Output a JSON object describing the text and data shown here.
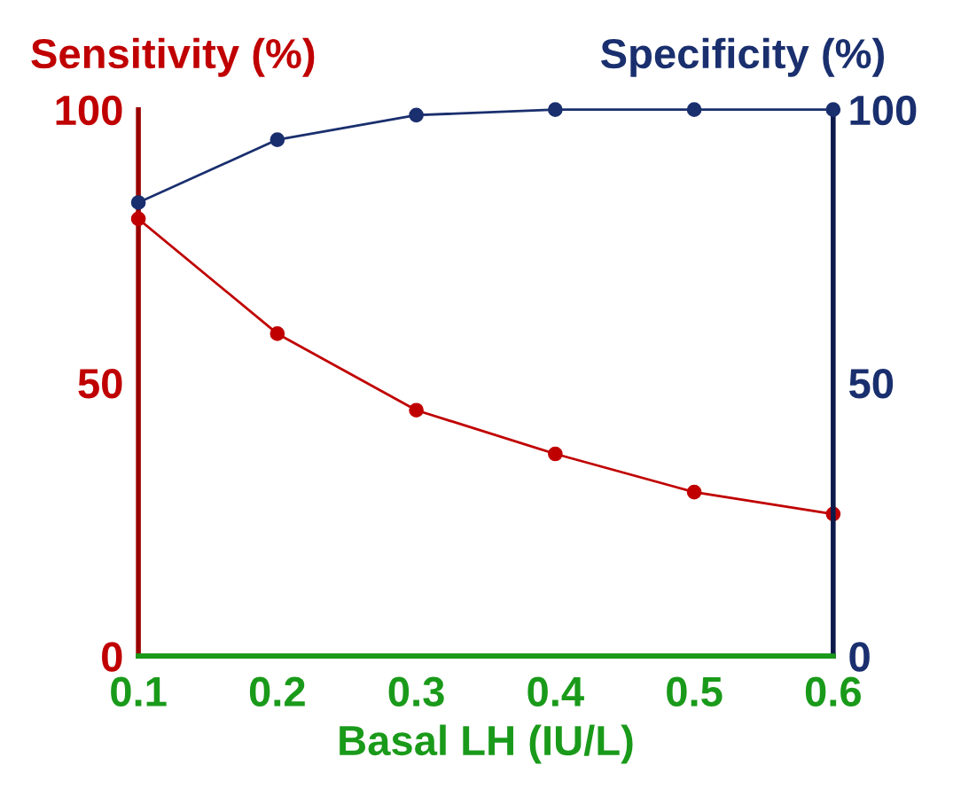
{
  "chart_data": {
    "type": "line",
    "xlabel": "Basal LH (IU/L)",
    "ylabel": "Sensitivity (%)",
    "y2label": "Specificity (%)",
    "x": [
      0.1,
      0.2,
      0.3,
      0.4,
      0.5,
      0.6
    ],
    "series": [
      {
        "color": "#c00000",
        "values": [
          80,
          59,
          45,
          37,
          30,
          26
        ]
      },
      {
        "color": "#1a2f6e",
        "values": [
          83,
          94.5,
          99,
          100,
          100,
          100
        ],
        "axis": "y2"
      }
    ],
    "xlim": [
      0.1,
      0.6
    ],
    "xticks": [
      0.1,
      0.2,
      0.3,
      0.4,
      0.5,
      0.6
    ],
    "ylim": [
      0,
      100
    ],
    "yticks": [
      0,
      50,
      100
    ],
    "y2lim": [
      0,
      100
    ],
    "y2ticks": [
      0,
      50,
      100
    ],
    "marker": "circle",
    "line_style": "solid",
    "grid": false,
    "legend": false
  }
}
